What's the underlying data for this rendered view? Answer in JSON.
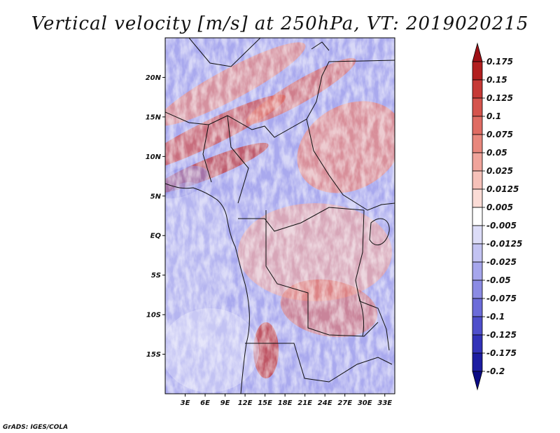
{
  "chart_data": {
    "type": "heatmap",
    "title": "Vertical velocity [m/s] at 250hPa, VT: 2019020215",
    "variable": "Vertical velocity",
    "units": "m/s",
    "level": "250hPa",
    "valid_time": "2019020215",
    "x_ticks": [
      "3E",
      "6E",
      "9E",
      "12E",
      "15E",
      "18E",
      "21E",
      "24E",
      "27E",
      "30E",
      "33E"
    ],
    "x_tick_values": [
      3,
      6,
      9,
      12,
      15,
      18,
      21,
      24,
      27,
      30,
      33
    ],
    "y_ticks": [
      "20N",
      "15N",
      "10N",
      "5N",
      "EQ",
      "5S",
      "10S",
      "15S"
    ],
    "y_tick_values": [
      20,
      15,
      10,
      5,
      0,
      -5,
      -10,
      -15
    ],
    "xlim": [
      0,
      34.5
    ],
    "ylim": [
      -20,
      25
    ],
    "colorbar": {
      "labels": [
        "0.175",
        "0.15",
        "0.125",
        "0.1",
        "0.075",
        "0.05",
        "0.025",
        "0.0125",
        "0.005",
        "-0.005",
        "-0.0125",
        "-0.025",
        "-0.05",
        "-0.075",
        "-0.1",
        "-0.125",
        "-0.175",
        "-0.2"
      ],
      "colors": [
        "#9e1016",
        "#b21f1f",
        "#c63a36",
        "#d5544d",
        "#df6c63",
        "#e8877d",
        "#f0a49b",
        "#f6c1b9",
        "#fbdcd6",
        "#ffffff",
        "#dcdcf7",
        "#c3c3f2",
        "#a6a6ec",
        "#8b8be4",
        "#6c6cd9",
        "#4f4fcb",
        "#3232b8",
        "#1c1ca1",
        "#0b0b85"
      ]
    },
    "credit": "GrADS: IGES/COLA"
  }
}
